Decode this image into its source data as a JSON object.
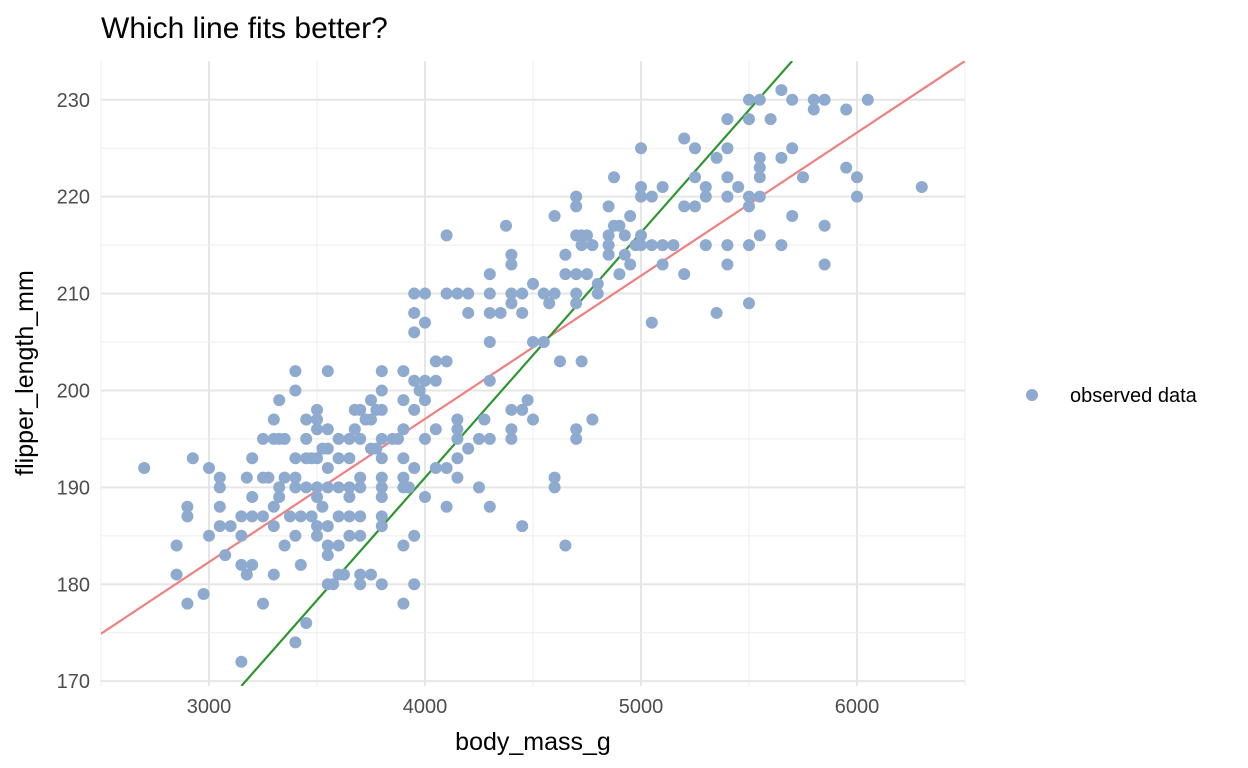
{
  "colors": {
    "points": "#8faacf",
    "line_1": "#f08080",
    "line_2": "#2e9630",
    "background": "#ffffff",
    "grid": "#e6e6e6",
    "tick_text": "#4d4d4d"
  },
  "chart_data": {
    "type": "scatter",
    "title": "Which line fits better?",
    "xlabel": "body_mass_g",
    "ylabel": "flipper_length_mm",
    "xlim": [
      2500,
      6500
    ],
    "ylim": [
      169.5,
      234
    ],
    "x_ticks": [
      3000,
      4000,
      5000,
      6000
    ],
    "y_ticks": [
      170,
      180,
      190,
      200,
      210,
      220,
      230
    ],
    "grid": true,
    "legend_position": "right",
    "legend": [
      {
        "label": "observed data",
        "marker": "point"
      }
    ],
    "lines": [
      {
        "points": [
          [
            2500,
            174.9
          ],
          [
            6500,
            234.0
          ]
        ]
      },
      {
        "points": [
          [
            3150,
            169.5
          ],
          [
            5700,
            234.0
          ]
        ]
      }
    ],
    "series": [
      {
        "name": "observed data",
        "points": [
          [
            2700,
            192
          ],
          [
            2850,
            184
          ],
          [
            2850,
            181
          ],
          [
            2900,
            188
          ],
          [
            2900,
            187
          ],
          [
            2900,
            178
          ],
          [
            2925,
            193
          ],
          [
            2975,
            179
          ],
          [
            3000,
            192
          ],
          [
            3000,
            185
          ],
          [
            3050,
            191
          ],
          [
            3050,
            190
          ],
          [
            3050,
            188
          ],
          [
            3050,
            186
          ],
          [
            3075,
            183
          ],
          [
            3100,
            186
          ],
          [
            3150,
            172
          ],
          [
            3150,
            185
          ],
          [
            3150,
            182
          ],
          [
            3150,
            187
          ],
          [
            3175,
            191
          ],
          [
            3175,
            181
          ],
          [
            3200,
            182
          ],
          [
            3200,
            187
          ],
          [
            3200,
            189
          ],
          [
            3200,
            193
          ],
          [
            3250,
            187
          ],
          [
            3250,
            191
          ],
          [
            3250,
            178
          ],
          [
            3250,
            195
          ],
          [
            3275,
            191
          ],
          [
            3300,
            181
          ],
          [
            3300,
            186
          ],
          [
            3300,
            188
          ],
          [
            3300,
            195
          ],
          [
            3300,
            197
          ],
          [
            3325,
            189
          ],
          [
            3325,
            190
          ],
          [
            3325,
            195
          ],
          [
            3325,
            199
          ],
          [
            3350,
            184
          ],
          [
            3350,
            195
          ],
          [
            3350,
            191
          ],
          [
            3375,
            187
          ],
          [
            3400,
            174
          ],
          [
            3400,
            185
          ],
          [
            3400,
            190
          ],
          [
            3400,
            191
          ],
          [
            3400,
            193
          ],
          [
            3400,
            200
          ],
          [
            3400,
            202
          ],
          [
            3425,
            182
          ],
          [
            3425,
            187
          ],
          [
            3450,
            176
          ],
          [
            3450,
            190
          ],
          [
            3450,
            193
          ],
          [
            3450,
            195
          ],
          [
            3450,
            197
          ],
          [
            3475,
            187
          ],
          [
            3475,
            193
          ],
          [
            3500,
            185
          ],
          [
            3500,
            186
          ],
          [
            3500,
            189
          ],
          [
            3500,
            190
          ],
          [
            3500,
            193
          ],
          [
            3500,
            196
          ],
          [
            3500,
            197
          ],
          [
            3500,
            198
          ],
          [
            3525,
            188
          ],
          [
            3525,
            194
          ],
          [
            3550,
            180
          ],
          [
            3550,
            183
          ],
          [
            3550,
            184
          ],
          [
            3550,
            186
          ],
          [
            3550,
            190
          ],
          [
            3550,
            192
          ],
          [
            3550,
            194
          ],
          [
            3550,
            196
          ],
          [
            3550,
            202
          ],
          [
            3575,
            180
          ],
          [
            3600,
            181
          ],
          [
            3600,
            184
          ],
          [
            3600,
            187
          ],
          [
            3600,
            190
          ],
          [
            3600,
            193
          ],
          [
            3600,
            195
          ],
          [
            3625,
            181
          ],
          [
            3650,
            185
          ],
          [
            3650,
            187
          ],
          [
            3650,
            189
          ],
          [
            3650,
            190
          ],
          [
            3650,
            193
          ],
          [
            3650,
            195
          ],
          [
            3675,
            196
          ],
          [
            3675,
            198
          ],
          [
            3700,
            180
          ],
          [
            3700,
            181
          ],
          [
            3700,
            185
          ],
          [
            3700,
            187
          ],
          [
            3700,
            190
          ],
          [
            3700,
            191
          ],
          [
            3700,
            195
          ],
          [
            3700,
            198
          ],
          [
            3725,
            197
          ],
          [
            3750,
            181
          ],
          [
            3750,
            194
          ],
          [
            3750,
            197
          ],
          [
            3750,
            199
          ],
          [
            3775,
            194
          ],
          [
            3775,
            198
          ],
          [
            3800,
            180
          ],
          [
            3800,
            186
          ],
          [
            3800,
            187
          ],
          [
            3800,
            189
          ],
          [
            3800,
            190
          ],
          [
            3800,
            191
          ],
          [
            3800,
            193
          ],
          [
            3800,
            195
          ],
          [
            3800,
            198
          ],
          [
            3800,
            200
          ],
          [
            3800,
            202
          ],
          [
            3850,
            195
          ],
          [
            3875,
            195
          ],
          [
            3900,
            178
          ],
          [
            3900,
            184
          ],
          [
            3900,
            190
          ],
          [
            3900,
            191
          ],
          [
            3900,
            193
          ],
          [
            3900,
            196
          ],
          [
            3900,
            199
          ],
          [
            3900,
            202
          ],
          [
            3925,
            190
          ],
          [
            3950,
            180
          ],
          [
            3950,
            185
          ],
          [
            3950,
            192
          ],
          [
            3950,
            198
          ],
          [
            3950,
            201
          ],
          [
            3950,
            206
          ],
          [
            3950,
            208
          ],
          [
            3950,
            210
          ],
          [
            3975,
            200
          ],
          [
            4000,
            189
          ],
          [
            4000,
            195
          ],
          [
            4000,
            199
          ],
          [
            4000,
            201
          ],
          [
            4000,
            207
          ],
          [
            4000,
            210
          ],
          [
            4050,
            192
          ],
          [
            4050,
            196
          ],
          [
            4050,
            201
          ],
          [
            4050,
            203
          ],
          [
            4100,
            188
          ],
          [
            4100,
            192
          ],
          [
            4100,
            203
          ],
          [
            4100,
            210
          ],
          [
            4100,
            216
          ],
          [
            4150,
            191
          ],
          [
            4150,
            193
          ],
          [
            4150,
            195
          ],
          [
            4150,
            196
          ],
          [
            4150,
            197
          ],
          [
            4150,
            210
          ],
          [
            4200,
            194
          ],
          [
            4200,
            208
          ],
          [
            4200,
            210
          ],
          [
            4250,
            190
          ],
          [
            4250,
            195
          ],
          [
            4275,
            197
          ],
          [
            4300,
            188
          ],
          [
            4300,
            195
          ],
          [
            4300,
            201
          ],
          [
            4300,
            205
          ],
          [
            4300,
            208
          ],
          [
            4300,
            210
          ],
          [
            4300,
            212
          ],
          [
            4350,
            208
          ],
          [
            4375,
            217
          ],
          [
            4400,
            195
          ],
          [
            4400,
            196
          ],
          [
            4400,
            198
          ],
          [
            4400,
            209
          ],
          [
            4400,
            210
          ],
          [
            4400,
            213
          ],
          [
            4400,
            214
          ],
          [
            4450,
            186
          ],
          [
            4450,
            198
          ],
          [
            4450,
            208
          ],
          [
            4450,
            210
          ],
          [
            4475,
            199
          ],
          [
            4500,
            197
          ],
          [
            4500,
            205
          ],
          [
            4500,
            211
          ],
          [
            4550,
            205
          ],
          [
            4550,
            210
          ],
          [
            4575,
            209
          ],
          [
            4600,
            190
          ],
          [
            4600,
            191
          ],
          [
            4600,
            210
          ],
          [
            4600,
            218
          ],
          [
            4625,
            203
          ],
          [
            4650,
            184
          ],
          [
            4650,
            212
          ],
          [
            4650,
            214
          ],
          [
            4700,
            195
          ],
          [
            4700,
            196
          ],
          [
            4700,
            209
          ],
          [
            4700,
            210
          ],
          [
            4700,
            212
          ],
          [
            4700,
            216
          ],
          [
            4700,
            219
          ],
          [
            4700,
            220
          ],
          [
            4725,
            203
          ],
          [
            4725,
            215
          ],
          [
            4725,
            216
          ],
          [
            4750,
            212
          ],
          [
            4750,
            216
          ],
          [
            4775,
            197
          ],
          [
            4775,
            215
          ],
          [
            4800,
            210
          ],
          [
            4800,
            211
          ],
          [
            4850,
            214
          ],
          [
            4850,
            215
          ],
          [
            4850,
            216
          ],
          [
            4850,
            219
          ],
          [
            4875,
            217
          ],
          [
            4875,
            222
          ],
          [
            4900,
            212
          ],
          [
            4900,
            217
          ],
          [
            4925,
            214
          ],
          [
            4925,
            216
          ],
          [
            4950,
            218
          ],
          [
            4950,
            213
          ],
          [
            4975,
            215
          ],
          [
            5000,
            215
          ],
          [
            5000,
            216
          ],
          [
            5000,
            220
          ],
          [
            5000,
            221
          ],
          [
            5000,
            225
          ],
          [
            5050,
            207
          ],
          [
            5050,
            215
          ],
          [
            5050,
            220
          ],
          [
            5100,
            213
          ],
          [
            5100,
            215
          ],
          [
            5100,
            221
          ],
          [
            5150,
            215
          ],
          [
            5200,
            212
          ],
          [
            5200,
            219
          ],
          [
            5200,
            226
          ],
          [
            5250,
            219
          ],
          [
            5250,
            222
          ],
          [
            5250,
            225
          ],
          [
            5300,
            215
          ],
          [
            5300,
            220
          ],
          [
            5300,
            221
          ],
          [
            5350,
            208
          ],
          [
            5350,
            224
          ],
          [
            5400,
            213
          ],
          [
            5400,
            215
          ],
          [
            5400,
            220
          ],
          [
            5400,
            222
          ],
          [
            5400,
            225
          ],
          [
            5400,
            228
          ],
          [
            5450,
            221
          ],
          [
            5500,
            209
          ],
          [
            5500,
            215
          ],
          [
            5500,
            219
          ],
          [
            5500,
            220
          ],
          [
            5500,
            228
          ],
          [
            5500,
            230
          ],
          [
            5550,
            216
          ],
          [
            5550,
            220
          ],
          [
            5550,
            222
          ],
          [
            5550,
            223
          ],
          [
            5550,
            224
          ],
          [
            5550,
            230
          ],
          [
            5600,
            228
          ],
          [
            5650,
            215
          ],
          [
            5650,
            224
          ],
          [
            5650,
            231
          ],
          [
            5700,
            218
          ],
          [
            5700,
            225
          ],
          [
            5700,
            230
          ],
          [
            5750,
            222
          ],
          [
            5800,
            229
          ],
          [
            5800,
            230
          ],
          [
            5850,
            213
          ],
          [
            5850,
            217
          ],
          [
            5850,
            230
          ],
          [
            5950,
            223
          ],
          [
            5950,
            229
          ],
          [
            6000,
            220
          ],
          [
            6000,
            222
          ],
          [
            6050,
            230
          ],
          [
            6300,
            221
          ]
        ]
      }
    ]
  }
}
